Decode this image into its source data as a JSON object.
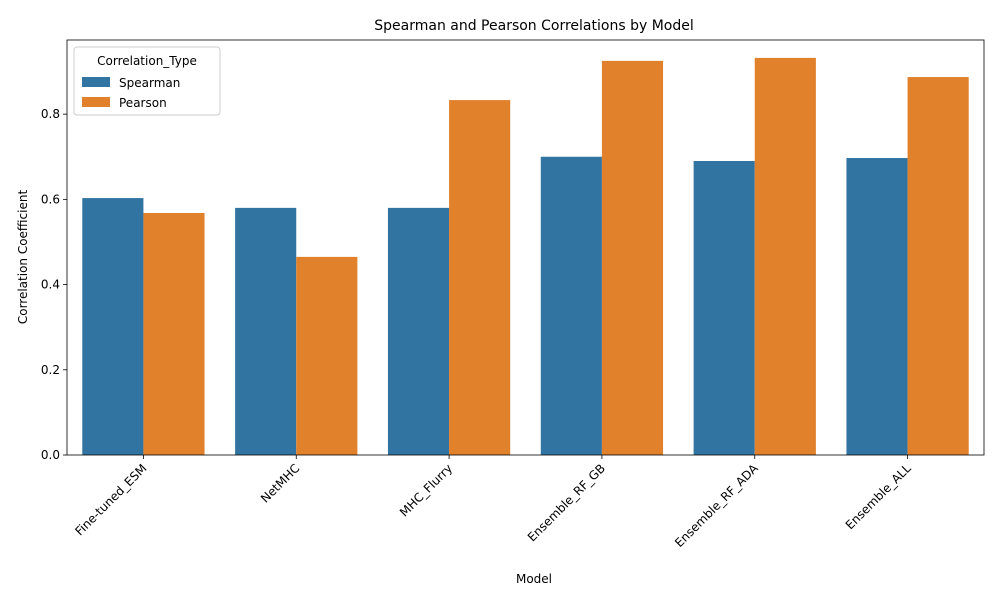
{
  "chart_data": {
    "type": "bar",
    "title": "Spearman and Pearson Correlations by Model",
    "xlabel": "Model",
    "ylabel": "Correlation Coefficient",
    "categories": [
      "Fine-tuned_ESM",
      "NetMHC",
      "MHC_Flurry",
      "Ensemble_RF_GB",
      "Ensemble_RF_ADA",
      "Ensemble_ALL"
    ],
    "series": [
      {
        "name": "Spearman",
        "color": "#3274a1",
        "values": [
          0.603,
          0.58,
          0.58,
          0.7,
          0.69,
          0.697
        ]
      },
      {
        "name": "Pearson",
        "color": "#e1812c",
        "values": [
          0.568,
          0.465,
          0.833,
          0.925,
          0.932,
          0.887
        ]
      }
    ],
    "ylim": [
      0,
      0.974
    ],
    "yticks": [
      0.0,
      0.2,
      0.4,
      0.6,
      0.8
    ],
    "ytick_labels": [
      "0.0",
      "0.2",
      "0.4",
      "0.6",
      "0.8"
    ],
    "grid": false,
    "legend": {
      "title": "Correlation_Type",
      "placement": "top-left"
    }
  }
}
